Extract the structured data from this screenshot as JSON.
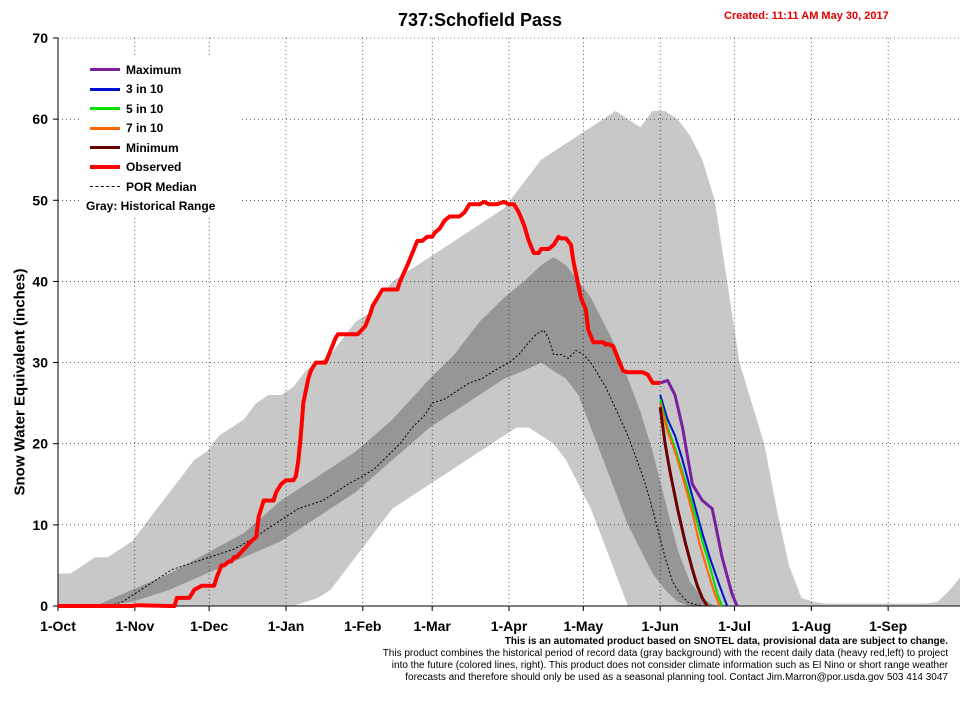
{
  "chart_data": {
    "type": "area",
    "title": "737:Schofield Pass",
    "created": "Created: 11:11 AM May 30, 2017",
    "ylabel": "Snow Water Equivalent (inches)",
    "xlabel": "",
    "ylim": [
      0,
      70
    ],
    "yticks": [
      0,
      10,
      20,
      30,
      40,
      50,
      60,
      70
    ],
    "xlim_day": [
      0,
      364
    ],
    "xticks": [
      {
        "label": "1-Oct",
        "day": 0
      },
      {
        "label": "1-Nov",
        "day": 31
      },
      {
        "label": "1-Dec",
        "day": 61
      },
      {
        "label": "1-Jan",
        "day": 92
      },
      {
        "label": "1-Feb",
        "day": 123
      },
      {
        "label": "1-Mar",
        "day": 151
      },
      {
        "label": "1-Apr",
        "day": 182
      },
      {
        "label": "1-May",
        "day": 212
      },
      {
        "label": "1-Jun",
        "day": 243
      },
      {
        "label": "1-Jul",
        "day": 273
      },
      {
        "label": "1-Aug",
        "day": 304
      },
      {
        "label": "1-Sep",
        "day": 335
      }
    ],
    "grid": true,
    "legend_position": "top-left",
    "legend_note": "Gray: Historical Range",
    "colors": {
      "maximum": "#7a1fa0",
      "p30": "#0010d0",
      "p50": "#00e000",
      "p70": "#ff6600",
      "minimum": "#6a0000",
      "observed": "#ff0000",
      "median": "#000000",
      "range_outer": "#c8c8c8",
      "range_inner": "#969696"
    },
    "series": [
      {
        "key": "maximum",
        "name": "Maximum",
        "x": [
          243,
          246,
          249,
          252,
          256,
          260,
          264,
          268,
          272,
          274
        ],
        "y": [
          27.5,
          27.8,
          26,
          22,
          15,
          13,
          12,
          6,
          1.5,
          0
        ]
      },
      {
        "key": "p30",
        "name": "3 in 10",
        "x": [
          243,
          246,
          249,
          252,
          256,
          260,
          263,
          267,
          270
        ],
        "y": [
          26,
          23,
          21,
          18,
          13.5,
          9,
          6,
          2.5,
          0
        ]
      },
      {
        "key": "p50",
        "name": "5 in 10",
        "x": [
          243,
          246,
          249,
          252,
          256,
          260,
          263,
          266,
          268
        ],
        "y": [
          25.5,
          22,
          19.5,
          16.5,
          12.5,
          8,
          5,
          1.5,
          0
        ]
      },
      {
        "key": "p70",
        "name": "7 in 10",
        "x": [
          243,
          246,
          249,
          252,
          256,
          259,
          262,
          265,
          267
        ],
        "y": [
          25,
          21.5,
          19,
          16,
          11.5,
          7.5,
          4.5,
          1.5,
          0
        ]
      },
      {
        "key": "minimum",
        "name": "Minimum",
        "x": [
          243,
          245,
          247,
          250,
          253,
          256,
          258,
          260,
          262
        ],
        "y": [
          24.5,
          20,
          16.5,
          12,
          8,
          4.5,
          2.5,
          1,
          0
        ]
      },
      {
        "key": "observed",
        "name": "Observed",
        "x": [
          0,
          30,
          32,
          45,
          47,
          48,
          53,
          55,
          58,
          63,
          64,
          66,
          67,
          69,
          70,
          71,
          72,
          75,
          78,
          80,
          81,
          83,
          85,
          87,
          88,
          90,
          92,
          95,
          96,
          97,
          98,
          99,
          101,
          102,
          104,
          106,
          108,
          112,
          113,
          114,
          116,
          118,
          121,
          124,
          126,
          127,
          128,
          131,
          133,
          135,
          137,
          138,
          141,
          143,
          145,
          147,
          149,
          151,
          152,
          154,
          156,
          158,
          160,
          162,
          164,
          166,
          168,
          170,
          172,
          174,
          177,
          180,
          182,
          184,
          186,
          188,
          190,
          192,
          194,
          195,
          198,
          200,
          202,
          203,
          205,
          207,
          208,
          211,
          213,
          214,
          216,
          218,
          220,
          221,
          222,
          224,
          226,
          228,
          230,
          232,
          234,
          236,
          238,
          240,
          241,
          243
        ],
        "y": [
          0,
          0,
          0.1,
          0,
          0,
          1,
          1,
          2,
          2.5,
          2.5,
          3.5,
          5,
          5,
          5.5,
          5.5,
          6,
          6,
          7,
          8,
          8.5,
          11,
          13,
          13,
          13,
          14,
          15,
          15.5,
          15.5,
          16,
          18,
          21,
          25,
          28,
          29,
          30,
          30,
          30,
          33,
          33.5,
          33.5,
          33.5,
          33.5,
          33.5,
          34.5,
          36,
          37,
          37.5,
          39,
          39,
          39,
          39,
          40,
          42,
          43.5,
          45,
          45,
          45.5,
          45.5,
          46,
          46.5,
          47.5,
          48,
          48,
          48,
          48.5,
          49.5,
          49.5,
          49.5,
          49.8,
          49.5,
          49.5,
          49.8,
          49.5,
          49.5,
          48.5,
          47,
          45,
          43.5,
          43.5,
          44,
          44,
          44.5,
          45.5,
          45.3,
          45.3,
          44.5,
          42.5,
          38,
          36.5,
          34,
          32.5,
          32.5,
          32.5,
          32.2,
          32.3,
          32,
          30.5,
          29,
          28.8,
          28.8,
          28.8,
          28.8,
          28.5,
          27.5,
          27.5,
          27.5
        ]
      },
      {
        "key": "median",
        "name": "POR Median",
        "x": [
          0,
          20,
          26,
          31,
          36,
          41,
          46,
          51,
          56,
          61,
          66,
          71,
          77,
          82,
          87,
          92,
          97,
          102,
          107,
          112,
          117,
          123,
          128,
          133,
          138,
          143,
          148,
          151,
          156,
          161,
          166,
          171,
          176,
          182,
          186,
          190,
          193,
          196,
          198,
          200,
          203,
          206,
          209,
          212,
          215,
          218,
          221,
          224,
          227,
          230,
          233,
          236,
          239,
          242,
          245,
          248,
          251,
          254,
          257,
          260
        ],
        "y": [
          0,
          0,
          0.5,
          1.5,
          2.5,
          3.5,
          4.5,
          5,
          5.5,
          6,
          6.5,
          7,
          8,
          9,
          10,
          11,
          12,
          12.5,
          13,
          14,
          15,
          16,
          17,
          18.5,
          20,
          22,
          23.5,
          25,
          25.5,
          26.5,
          27.5,
          28,
          29,
          30,
          31,
          32.5,
          33.5,
          34,
          33,
          31,
          31,
          30.5,
          31.5,
          31,
          30,
          28.5,
          27,
          25,
          23,
          21,
          18.5,
          16,
          13,
          9.5,
          6,
          3,
          1.5,
          0.5,
          0.2,
          0
        ]
      }
    ],
    "range_outer": {
      "x": [
        0,
        5,
        10,
        15,
        20,
        25,
        30,
        35,
        40,
        45,
        50,
        55,
        60,
        65,
        70,
        75,
        80,
        85,
        90,
        95,
        100,
        105,
        110,
        115,
        120,
        125,
        130,
        135,
        140,
        145,
        150,
        155,
        160,
        165,
        170,
        175,
        180,
        185,
        190,
        195,
        200,
        205,
        210,
        215,
        220,
        225,
        230,
        235,
        240,
        245,
        250,
        255,
        260,
        265,
        270,
        275,
        280,
        285,
        290,
        295,
        300,
        305,
        310,
        315,
        320,
        325,
        330,
        335,
        340,
        345,
        350,
        355,
        360,
        364
      ],
      "upper": [
        4,
        4,
        5,
        6,
        6,
        7,
        8,
        10,
        12,
        14,
        16,
        18,
        19,
        21,
        22,
        23,
        25,
        26,
        26,
        27,
        29,
        30,
        31,
        33,
        35,
        36,
        38,
        40,
        41,
        42,
        43,
        44,
        45,
        46,
        47,
        48,
        49,
        51,
        53,
        55,
        56,
        57,
        58,
        59,
        60,
        61,
        60,
        59,
        61,
        61,
        60,
        58,
        55,
        50,
        40,
        30,
        25,
        20,
        12,
        5,
        1,
        0.5,
        0.3,
        0.3,
        0.3,
        0.3,
        0.3,
        0.3,
        0.3,
        0.3,
        0.3,
        0.5,
        2,
        3.5
      ],
      "lower": [
        0,
        0,
        0,
        0,
        0,
        0,
        0,
        0,
        0,
        0,
        0,
        0,
        0,
        0,
        0,
        0,
        0,
        0,
        0,
        0,
        0.5,
        1,
        2,
        4,
        6,
        8,
        10,
        12,
        13,
        14,
        15,
        16,
        17,
        18,
        19,
        20,
        21,
        22,
        22,
        21,
        20,
        18,
        15,
        12,
        8,
        4,
        0,
        0,
        0,
        0,
        0,
        0,
        0,
        0,
        0,
        0,
        0,
        0,
        0,
        0,
        0,
        0,
        0,
        0,
        0,
        0,
        0,
        0,
        0,
        0,
        0,
        0,
        0,
        0
      ]
    },
    "range_inner": {
      "x": [
        15,
        30,
        45,
        60,
        75,
        90,
        105,
        120,
        135,
        150,
        160,
        170,
        180,
        188,
        195,
        200,
        205,
        210,
        215,
        220,
        225,
        230,
        235,
        240,
        245,
        250,
        255,
        260,
        265
      ],
      "upper": [
        0,
        2,
        4,
        6.5,
        9,
        13,
        16,
        19,
        23,
        28,
        31,
        35,
        38,
        40,
        42,
        43,
        42,
        40,
        38,
        35,
        32,
        28,
        24,
        19,
        13,
        7,
        3,
        1,
        0
      ],
      "lower": [
        0,
        0.5,
        2,
        4,
        6,
        8,
        11,
        14,
        18,
        22,
        24,
        26,
        28,
        29,
        30,
        29,
        28,
        26,
        22,
        18,
        14,
        10,
        7,
        4,
        2,
        0.5,
        0,
        0,
        0
      ]
    }
  },
  "notes": {
    "line1": "This is an automated product based on SNOTEL data, provisional data are subject to change.",
    "line2": "This product combines the historical period of record data (gray background) with the recent daily data (heavy red,left) to project",
    "line3": "into the future (colored lines, right). This product does not consider climate information such as El Nino or short range weather",
    "line4": "forecasts and therefore should only be used as a seasonal planning tool. Contact Jim.Marron@por.usda.gov 503 414 3047"
  }
}
